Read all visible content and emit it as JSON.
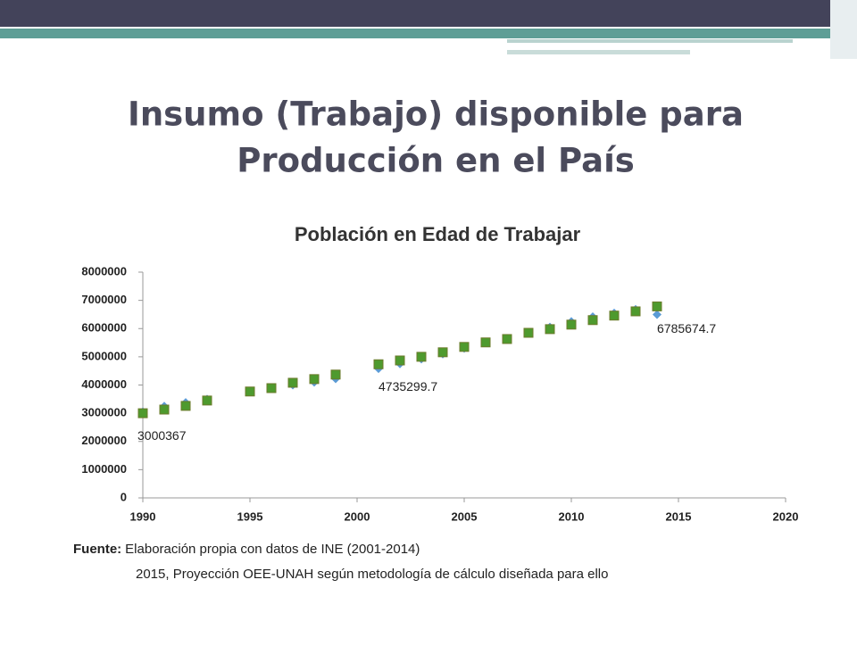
{
  "slide": {
    "title": [
      "Insumo (Trabajo) disponible para",
      "Producción en el País"
    ]
  },
  "chart_data": {
    "type": "scatter",
    "title": "Población en Edad de Trabajar",
    "x": [
      1990,
      1991,
      1992,
      1993,
      1995,
      1996,
      1997,
      1998,
      1999,
      2001,
      2002,
      2003,
      2004,
      2005,
      2006,
      2007,
      2008,
      2009,
      2010,
      2011,
      2012,
      2013,
      2014
    ],
    "series": [
      {
        "color": "#5b9bd5",
        "marker": "diamond",
        "values": [
          3050000,
          3250000,
          3380000,
          3500000,
          3760000,
          3900000,
          4000000,
          4100000,
          4220000,
          4580000,
          4750000,
          4920000,
          5100000,
          5300000,
          5500000,
          5650000,
          5850000,
          6050000,
          6250000,
          6420000,
          6550000,
          6680000,
          6500000
        ]
      },
      {
        "color": "#4e9a2e",
        "marker": "square",
        "values": [
          3000367,
          3130000,
          3260000,
          3450000,
          3770000,
          3890000,
          4080000,
          4210000,
          4370000,
          4735299.7,
          4870000,
          5000000,
          5160000,
          5350000,
          5510000,
          5630000,
          5850000,
          5980000,
          6140000,
          6300000,
          6460000,
          6610000,
          6785674.7
        ],
        "value_labels": [
          "3000367",
          null,
          null,
          null,
          null,
          null,
          null,
          null,
          null,
          "4735299.7",
          null,
          null,
          null,
          null,
          null,
          null,
          null,
          null,
          null,
          null,
          null,
          null,
          "6785674.7"
        ]
      }
    ],
    "xlim": [
      1990,
      2020
    ],
    "xticks": [
      1990,
      1995,
      2000,
      2005,
      2010,
      2015,
      2020
    ],
    "ylim": [
      0,
      8000000
    ],
    "yticks": [
      0,
      1000000,
      2000000,
      3000000,
      4000000,
      5000000,
      6000000,
      7000000,
      8000000
    ],
    "grid": false,
    "source": {
      "label": "Fuente:",
      "lines": [
        "Elaboración propia con datos de INE (2001-2014)",
        "2015, Proyección OEE-UNAH según metodología de cálculo diseñada para ello"
      ]
    }
  }
}
